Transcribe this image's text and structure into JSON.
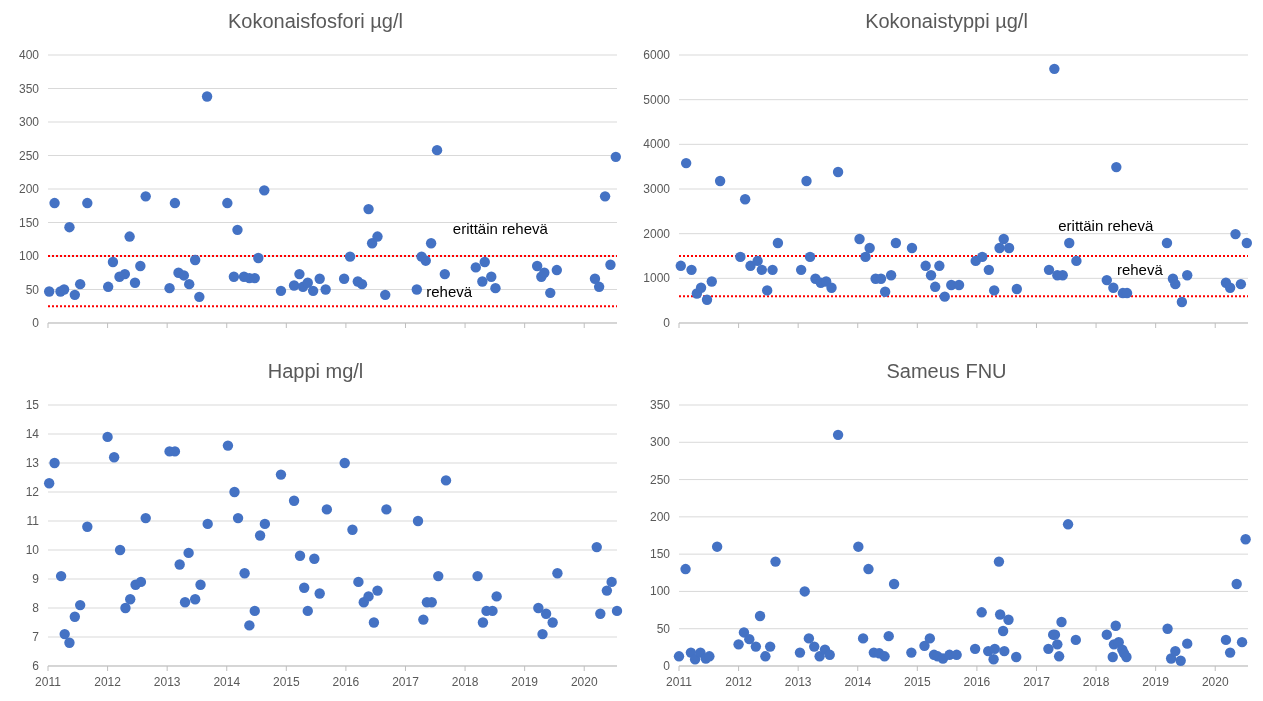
{
  "chart_data": [
    {
      "type": "scatter",
      "title": "Kokonaisfosfori µg/l",
      "color": "#4472c4",
      "marker": "circle",
      "grid": "y",
      "tick_labels": "y",
      "xlim": [
        2011,
        2020.55
      ],
      "xticks": [
        2011,
        2012,
        2013,
        2014,
        2015,
        2016,
        2017,
        2018,
        2019,
        2020
      ],
      "ylim": [
        0,
        400
      ],
      "yticks": [
        0,
        50,
        100,
        150,
        200,
        250,
        300,
        350,
        400
      ],
      "x": [
        2011.02,
        2011.11,
        2011.21,
        2011.27,
        2011.36,
        2011.45,
        2011.54,
        2011.66,
        2012.01,
        2012.09,
        2012.2,
        2012.29,
        2012.37,
        2012.46,
        2012.55,
        2012.64,
        2013.04,
        2013.13,
        2013.19,
        2013.28,
        2013.37,
        2013.47,
        2013.54,
        2013.67,
        2014.01,
        2014.12,
        2014.18,
        2014.29,
        2014.38,
        2014.47,
        2014.53,
        2014.63,
        2014.91,
        2015.13,
        2015.22,
        2015.28,
        2015.36,
        2015.45,
        2015.56,
        2015.66,
        2015.97,
        2016.07,
        2016.2,
        2016.27,
        2016.38,
        2016.44,
        2016.53,
        2016.66,
        2017.19,
        2017.27,
        2017.34,
        2017.43,
        2017.53,
        2017.66,
        2018.18,
        2018.29,
        2018.33,
        2018.44,
        2018.51,
        2019.21,
        2019.28,
        2019.33,
        2019.43,
        2019.54,
        2020.18,
        2020.25,
        2020.35,
        2020.44,
        2020.53
      ],
      "values": [
        47,
        179,
        47,
        50,
        143,
        42,
        58,
        179,
        54,
        91,
        69,
        73,
        129,
        60,
        85,
        189,
        52,
        179,
        75,
        71,
        58,
        94,
        39,
        338,
        179,
        69,
        139,
        69,
        67,
        67,
        97,
        198,
        48,
        56,
        73,
        54,
        60,
        48,
        66,
        50,
        66,
        99,
        62,
        58,
        170,
        119,
        129,
        42,
        50,
        99,
        93,
        119,
        258,
        73,
        83,
        62,
        91,
        69,
        52,
        85,
        69,
        75,
        45,
        79,
        66,
        54,
        189,
        87,
        248
      ],
      "ref_lines": [
        {
          "axis": "y",
          "value": 100,
          "color": "#ff0000",
          "line_style": "dotted",
          "label": "erittäin rehevä"
        },
        {
          "axis": "y",
          "value": 25,
          "color": "#ff0000",
          "line_style": "dotted",
          "label": "rehevä"
        }
      ]
    },
    {
      "type": "scatter",
      "title": "Kokonaistyppi µg/l",
      "color": "#4472c4",
      "marker": "circle",
      "grid": "y",
      "tick_labels": "y",
      "xlim": [
        2011,
        2020.55
      ],
      "xticks": [
        2011,
        2012,
        2013,
        2014,
        2015,
        2016,
        2017,
        2018,
        2019,
        2020
      ],
      "ylim": [
        0,
        6000
      ],
      "yticks": [
        0,
        1000,
        2000,
        3000,
        4000,
        5000,
        6000
      ],
      "x": [
        2011.03,
        2011.12,
        2011.21,
        2011.3,
        2011.37,
        2011.47,
        2011.55,
        2011.69,
        2012.03,
        2012.11,
        2012.2,
        2012.32,
        2012.39,
        2012.48,
        2012.57,
        2012.66,
        2013.05,
        2013.14,
        2013.2,
        2013.29,
        2013.38,
        2013.47,
        2013.56,
        2013.67,
        2014.03,
        2014.13,
        2014.2,
        2014.3,
        2014.39,
        2014.46,
        2014.56,
        2014.64,
        2014.91,
        2015.14,
        2015.23,
        2015.3,
        2015.37,
        2015.46,
        2015.57,
        2015.7,
        2015.98,
        2016.09,
        2016.2,
        2016.29,
        2016.38,
        2016.45,
        2016.54,
        2016.67,
        2017.21,
        2017.3,
        2017.35,
        2017.44,
        2017.55,
        2017.67,
        2018.18,
        2018.29,
        2018.34,
        2018.45,
        2018.52,
        2019.19,
        2019.29,
        2019.33,
        2019.44,
        2019.53,
        2020.18,
        2020.25,
        2020.34,
        2020.43,
        2020.53
      ],
      "values": [
        1280,
        3580,
        1190,
        660,
        790,
        520,
        930,
        3180,
        1480,
        2770,
        1280,
        1390,
        1190,
        730,
        1190,
        1790,
        1190,
        3180,
        1480,
        990,
        900,
        930,
        790,
        3380,
        1880,
        1480,
        1680,
        990,
        990,
        700,
        1070,
        1790,
        1680,
        1280,
        1070,
        810,
        1280,
        590,
        850,
        850,
        1390,
        1480,
        1190,
        730,
        1680,
        1880,
        1680,
        760,
        1190,
        5690,
        1070,
        1070,
        1790,
        1390,
        960,
        790,
        3490,
        670,
        670,
        1790,
        990,
        870,
        470,
        1070,
        900,
        790,
        1990,
        870,
        1790
      ],
      "ref_lines": [
        {
          "axis": "y",
          "value": 1500,
          "color": "#ff0000",
          "line_style": "dotted",
          "label": "erittäin rehevä"
        },
        {
          "axis": "y",
          "value": 600,
          "color": "#ff0000",
          "line_style": "dotted",
          "label": "rehevä"
        }
      ]
    },
    {
      "type": "scatter",
      "title": "Happi mg/l",
      "color": "#4472c4",
      "marker": "circle",
      "grid": "y",
      "xlim": [
        2011,
        2020.55
      ],
      "xticks": [
        2011,
        2012,
        2013,
        2014,
        2015,
        2016,
        2017,
        2018,
        2019,
        2020
      ],
      "ylim": [
        6,
        15
      ],
      "yticks": [
        6,
        7,
        8,
        9,
        10,
        11,
        12,
        13,
        14,
        15
      ],
      "x": [
        2011.02,
        2011.11,
        2011.22,
        2011.28,
        2011.36,
        2011.45,
        2011.54,
        2011.66,
        2012.0,
        2012.11,
        2012.21,
        2012.3,
        2012.38,
        2012.47,
        2012.56,
        2012.64,
        2013.04,
        2013.13,
        2013.21,
        2013.3,
        2013.36,
        2013.47,
        2013.56,
        2013.68,
        2014.02,
        2014.13,
        2014.19,
        2014.3,
        2014.38,
        2014.47,
        2014.56,
        2014.64,
        2014.91,
        2015.13,
        2015.23,
        2015.3,
        2015.36,
        2015.47,
        2015.56,
        2015.68,
        2015.98,
        2016.11,
        2016.21,
        2016.3,
        2016.38,
        2016.47,
        2016.53,
        2016.68,
        2017.21,
        2017.3,
        2017.36,
        2017.44,
        2017.55,
        2017.68,
        2018.21,
        2018.3,
        2018.36,
        2018.46,
        2018.53,
        2019.23,
        2019.3,
        2019.36,
        2019.47,
        2019.55,
        2020.21,
        2020.27,
        2020.38,
        2020.46,
        2020.55
      ],
      "values": [
        12.3,
        13.0,
        9.1,
        7.1,
        6.8,
        7.7,
        8.1,
        10.8,
        13.9,
        13.2,
        10.0,
        8.0,
        8.3,
        8.8,
        8.9,
        11.1,
        13.4,
        13.4,
        9.5,
        8.2,
        9.9,
        8.3,
        8.8,
        10.9,
        13.6,
        12.0,
        11.1,
        9.2,
        7.4,
        7.9,
        10.5,
        10.9,
        12.6,
        11.7,
        9.8,
        8.7,
        7.9,
        9.7,
        8.5,
        11.4,
        13.0,
        10.7,
        8.9,
        8.2,
        8.4,
        7.5,
        8.6,
        11.4,
        11.0,
        7.6,
        8.2,
        8.2,
        9.1,
        12.4,
        9.1,
        7.5,
        7.9,
        7.9,
        8.4,
        8.0,
        7.1,
        7.8,
        7.5,
        9.2,
        10.1,
        7.8,
        8.6,
        8.9,
        7.9
      ]
    },
    {
      "type": "scatter",
      "title": "Sameus FNU",
      "color": "#4472c4",
      "marker": "circle",
      "grid": "y",
      "xlim": [
        2011,
        2020.55
      ],
      "xticks": [
        2011,
        2012,
        2013,
        2014,
        2015,
        2016,
        2017,
        2018,
        2019,
        2020
      ],
      "ylim": [
        0,
        350
      ],
      "yticks": [
        0,
        50,
        100,
        150,
        200,
        250,
        300,
        350
      ],
      "x": [
        2011.0,
        2011.11,
        2011.2,
        2011.27,
        2011.36,
        2011.45,
        2011.51,
        2011.64,
        2012.0,
        2012.09,
        2012.18,
        2012.29,
        2012.36,
        2012.45,
        2012.53,
        2012.62,
        2013.03,
        2013.11,
        2013.18,
        2013.27,
        2013.36,
        2013.45,
        2013.53,
        2013.67,
        2014.01,
        2014.09,
        2014.18,
        2014.27,
        2014.36,
        2014.45,
        2014.52,
        2014.61,
        2014.9,
        2015.12,
        2015.21,
        2015.28,
        2015.34,
        2015.43,
        2015.54,
        2015.66,
        2015.97,
        2016.08,
        2016.19,
        2016.28,
        2016.3,
        2016.37,
        2016.39,
        2016.44,
        2016.46,
        2016.53,
        2016.66,
        2017.2,
        2017.28,
        2017.31,
        2017.35,
        2017.38,
        2017.42,
        2017.53,
        2017.66,
        2018.18,
        2018.28,
        2018.3,
        2018.33,
        2018.38,
        2018.44,
        2018.47,
        2018.51,
        2019.2,
        2019.26,
        2019.33,
        2019.42,
        2019.53,
        2020.18,
        2020.25,
        2020.36,
        2020.45,
        2020.51
      ],
      "values": [
        13,
        130,
        18,
        9,
        18,
        10,
        13,
        160,
        29,
        45,
        36,
        26,
        67,
        13,
        26,
        140,
        18,
        100,
        37,
        26,
        13,
        22,
        15,
        310,
        160,
        37,
        130,
        18,
        17,
        13,
        40,
        110,
        18,
        27,
        37,
        15,
        13,
        10,
        15,
        15,
        23,
        72,
        20,
        9,
        23,
        140,
        69,
        47,
        20,
        62,
        12,
        23,
        42,
        42,
        29,
        13,
        59,
        190,
        35,
        42,
        12,
        29,
        54,
        32,
        22,
        17,
        12,
        50,
        10,
        20,
        7,
        30,
        35,
        18,
        110,
        32,
        170
      ]
    }
  ]
}
